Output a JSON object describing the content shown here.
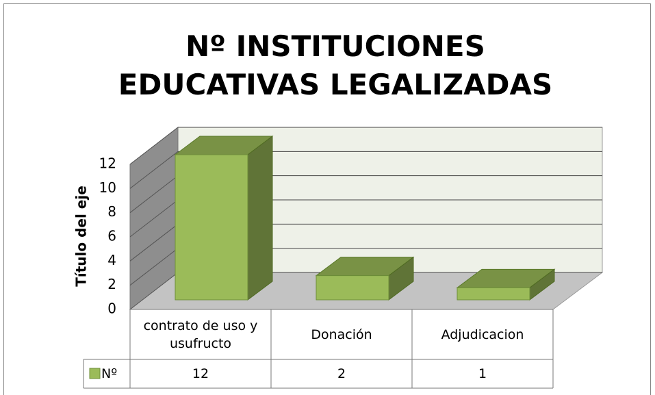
{
  "chart_data": {
    "type": "bar3d",
    "title": "Nº INSTITUCIONES EDUCATIVAS LEGALIZADAS",
    "y_axis_label": "Título del eje",
    "categories": [
      "contrato de uso y usufructo",
      "Donación",
      "Adjudicacion"
    ],
    "series": [
      {
        "name": "Nº",
        "color": "#9bbb59",
        "values": [
          12,
          2,
          1
        ]
      }
    ],
    "ylim": [
      0,
      12
    ],
    "yticks": [
      0,
      2,
      4,
      6,
      8,
      10,
      12
    ],
    "grid": true,
    "data_table": true
  }
}
